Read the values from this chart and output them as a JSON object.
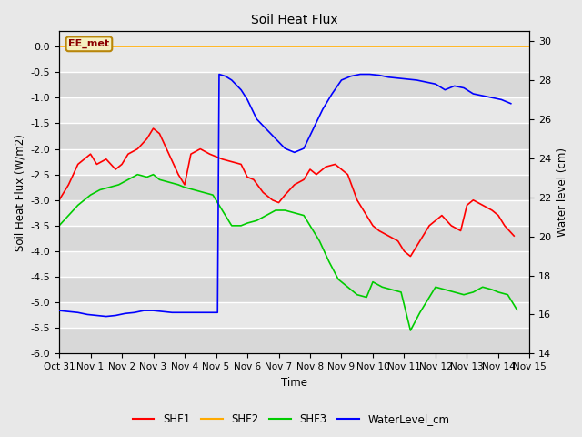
{
  "title": "Soil Heat Flux",
  "ylabel_left": "Soil Heat Flux (W/m2)",
  "ylabel_right": "Water level (cm)",
  "xlabel": "Time",
  "ylim_left": [
    -6.0,
    0.3
  ],
  "ylim_right": [
    14,
    30.5
  ],
  "fig_bg_color": "#e8e8e8",
  "plot_bg_color": "#e8e8e8",
  "annotation_text": "EE_met",
  "annotation_color": "#8b0000",
  "annotation_bg": "#f5f0c0",
  "annotation_border": "#b8860b",
  "xtick_labels": [
    "Oct 31",
    "Nov 1",
    "Nov 2",
    "Nov 3",
    "Nov 4",
    "Nov 5",
    "Nov 6",
    "Nov 7",
    "Nov 8",
    "Nov 9",
    "Nov 10",
    "Nov 11",
    "Nov 12",
    "Nov 13",
    "Nov 14",
    "Nov 15"
  ],
  "shf2_value": 0.0,
  "line_colors": {
    "SHF1": "#ff0000",
    "SHF2": "#ffaa00",
    "SHF3": "#00cc00",
    "WaterLevel_cm": "#0000ff"
  },
  "SHF1_x": [
    0,
    0.3,
    0.6,
    0.8,
    1.0,
    1.2,
    1.5,
    1.8,
    2.0,
    2.2,
    2.5,
    2.8,
    3.0,
    3.2,
    3.5,
    3.8,
    4.0,
    4.2,
    4.5,
    4.8,
    5.0,
    5.2,
    5.5,
    5.8,
    6.0,
    6.2,
    6.5,
    6.8,
    7.0,
    7.2,
    7.5,
    7.8,
    8.0,
    8.2,
    8.5,
    8.8,
    9.0,
    9.2,
    9.5,
    9.8,
    10.0,
    10.2,
    10.5,
    10.8,
    11.0,
    11.2,
    11.5,
    11.8,
    12.0,
    12.2,
    12.5,
    12.8,
    13.0,
    13.2,
    13.5,
    13.8,
    14.0,
    14.2,
    14.5
  ],
  "SHF1_y": [
    -3.0,
    -2.7,
    -2.3,
    -2.2,
    -2.1,
    -2.3,
    -2.2,
    -2.4,
    -2.3,
    -2.1,
    -2.0,
    -1.8,
    -1.6,
    -1.7,
    -2.1,
    -2.5,
    -2.7,
    -2.1,
    -2.0,
    -2.1,
    -2.15,
    -2.2,
    -2.25,
    -2.3,
    -2.55,
    -2.6,
    -2.85,
    -3.0,
    -3.05,
    -2.9,
    -2.7,
    -2.6,
    -2.4,
    -2.5,
    -2.35,
    -2.3,
    -2.4,
    -2.5,
    -3.0,
    -3.3,
    -3.5,
    -3.6,
    -3.7,
    -3.8,
    -4.0,
    -4.1,
    -3.8,
    -3.5,
    -3.4,
    -3.3,
    -3.5,
    -3.6,
    -3.1,
    -3.0,
    -3.1,
    -3.2,
    -3.3,
    -3.5,
    -3.7
  ],
  "SHF3_x": [
    0,
    0.3,
    0.6,
    0.8,
    1.0,
    1.3,
    1.6,
    1.9,
    2.2,
    2.5,
    2.8,
    3.0,
    3.2,
    3.5,
    3.8,
    4.0,
    4.3,
    4.6,
    4.9,
    5.0,
    5.05,
    5.1,
    5.5,
    5.8,
    6.0,
    6.3,
    6.6,
    6.9,
    7.2,
    7.5,
    7.8,
    8.0,
    8.3,
    8.6,
    8.9,
    9.2,
    9.5,
    9.8,
    10.0,
    10.3,
    10.6,
    10.9,
    11.2,
    11.5,
    11.8,
    12.0,
    12.3,
    12.6,
    12.9,
    13.2,
    13.5,
    13.8,
    14.0,
    14.3,
    14.6
  ],
  "SHF3_y": [
    -3.5,
    -3.3,
    -3.1,
    -3.0,
    -2.9,
    -2.8,
    -2.75,
    -2.7,
    -2.6,
    -2.5,
    -2.55,
    -2.5,
    -2.6,
    -2.65,
    -2.7,
    -2.75,
    -2.8,
    -2.85,
    -2.9,
    -3.0,
    -3.05,
    -3.1,
    -3.5,
    -3.5,
    -3.45,
    -3.4,
    -3.3,
    -3.2,
    -3.2,
    -3.25,
    -3.3,
    -3.5,
    -3.8,
    -4.2,
    -4.55,
    -4.7,
    -4.85,
    -4.9,
    -4.6,
    -4.7,
    -4.75,
    -4.8,
    -5.55,
    -5.2,
    -4.9,
    -4.7,
    -4.75,
    -4.8,
    -4.85,
    -4.8,
    -4.7,
    -4.75,
    -4.8,
    -4.85,
    -5.15
  ],
  "WL_x": [
    0,
    0.3,
    0.6,
    0.9,
    1.2,
    1.5,
    1.8,
    2.1,
    2.4,
    2.7,
    3.0,
    3.3,
    3.6,
    3.9,
    4.2,
    4.5,
    4.7,
    4.85,
    4.9,
    4.95,
    5.0,
    5.05,
    5.1,
    5.3,
    5.5,
    5.8,
    6.0,
    6.3,
    6.6,
    6.9,
    7.2,
    7.5,
    7.8,
    8.1,
    8.4,
    8.7,
    9.0,
    9.3,
    9.6,
    9.9,
    10.2,
    10.5,
    10.8,
    11.1,
    11.4,
    11.7,
    12.0,
    12.3,
    12.6,
    12.9,
    13.2,
    13.5,
    13.8,
    14.1,
    14.4
  ],
  "WL_y": [
    16.2,
    16.15,
    16.1,
    16.0,
    15.95,
    15.9,
    15.95,
    16.05,
    16.1,
    16.2,
    16.2,
    16.15,
    16.1,
    16.1,
    16.1,
    16.1,
    16.1,
    16.1,
    16.1,
    16.1,
    16.1,
    16.1,
    28.3,
    28.2,
    28.0,
    27.5,
    27.0,
    26.0,
    25.5,
    25.0,
    24.5,
    24.3,
    24.5,
    25.5,
    26.5,
    27.3,
    28.0,
    28.2,
    28.3,
    28.3,
    28.25,
    28.15,
    28.1,
    28.05,
    28.0,
    27.9,
    27.8,
    27.5,
    27.7,
    27.6,
    27.3,
    27.2,
    27.1,
    27.0,
    26.8
  ]
}
